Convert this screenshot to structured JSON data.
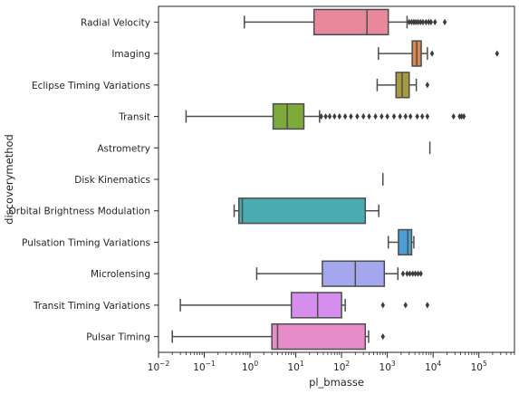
{
  "chart_data": {
    "type": "box",
    "orientation": "horizontal",
    "xscale": "log",
    "xlabel": "pl_bmasse",
    "ylabel": "discoverymethod",
    "xlim": [
      0.01,
      600000
    ],
    "xticks": [
      {
        "value": 0.01,
        "base": "10",
        "exp": "−2"
      },
      {
        "value": 0.1,
        "base": "10",
        "exp": "−1"
      },
      {
        "value": 1,
        "base": "10",
        "exp": "0"
      },
      {
        "value": 10,
        "base": "10",
        "exp": "1"
      },
      {
        "value": 100,
        "base": "10",
        "exp": "2"
      },
      {
        "value": 1000,
        "base": "10",
        "exp": "3"
      },
      {
        "value": 10000,
        "base": "10",
        "exp": "4"
      },
      {
        "value": 100000,
        "base": "10",
        "exp": "5"
      }
    ],
    "grid": false,
    "legend": "none",
    "categories": [
      "Radial Velocity",
      "Imaging",
      "Eclipse Timing Variations",
      "Transit",
      "Astrometry",
      "Disk Kinematics",
      "Orbital Brightness Modulation",
      "Pulsation Timing Variations",
      "Microlensing",
      "Transit Timing Variations",
      "Pulsar Timing"
    ],
    "boxes": [
      {
        "category": "Radial Velocity",
        "color": "#e8889a",
        "whisker_low": 0.75,
        "q1": 25,
        "median": 360,
        "q3": 1050,
        "whisker_high": 2700,
        "outliers": [
          3000,
          3400,
          3800,
          4200,
          4700,
          5300,
          6000,
          7000,
          8000,
          9000,
          11000,
          18000
        ]
      },
      {
        "category": "Imaging",
        "color": "#d9874b",
        "whisker_low": 640,
        "q1": 3500,
        "median": 4400,
        "q3": 5500,
        "whisker_high": 7500,
        "outliers": [
          9500,
          250000
        ]
      },
      {
        "category": "Eclipse Timing Variations",
        "color": "#a69a3e",
        "whisker_low": 600,
        "q1": 1550,
        "median": 2100,
        "q3": 3000,
        "whisker_high": 4300,
        "outliers": [
          7500
        ]
      },
      {
        "category": "Transit",
        "color": "#7daa3a",
        "whisker_low": 0.04,
        "q1": 3.2,
        "median": 6.5,
        "q3": 15,
        "whisker_high": 33,
        "outliers": [
          36,
          45,
          55,
          70,
          90,
          120,
          160,
          220,
          300,
          400,
          550,
          750,
          1000,
          1400,
          1900,
          2500,
          3200,
          4500,
          5800,
          7500,
          28000,
          38000,
          42000,
          47000
        ]
      },
      {
        "category": "Astrometry",
        "color": "#5aa882",
        "whisker_low": 8500,
        "q1": 8500,
        "median": 8500,
        "q3": 8500,
        "whisker_high": 8500,
        "outliers": []
      },
      {
        "category": "Disk Kinematics",
        "color": "#4fa89b",
        "whisker_low": 800,
        "q1": 800,
        "median": 800,
        "q3": 800,
        "whisker_high": 800,
        "outliers": []
      },
      {
        "category": "Orbital Brightness Modulation",
        "color": "#4aabb0",
        "whisker_low": 0.45,
        "q1": 0.57,
        "median": 0.68,
        "q3": 330,
        "whisker_high": 650,
        "outliers": []
      },
      {
        "category": "Pulsation Timing Variations",
        "color": "#4d9ed4",
        "whisker_low": 1050,
        "q1": 1750,
        "median": 2800,
        "q3": 3400,
        "whisker_high": 3800,
        "outliers": []
      },
      {
        "category": "Microlensing",
        "color": "#a4a7ee",
        "whisker_low": 1.4,
        "q1": 38,
        "median": 200,
        "q3": 860,
        "whisker_high": 1700,
        "outliers": [
          2200,
          2700,
          3100,
          3600,
          4100,
          4700,
          5400
        ]
      },
      {
        "category": "Transit Timing Variations",
        "color": "#d68eee",
        "whisker_low": 0.03,
        "q1": 8,
        "median": 30,
        "q3": 100,
        "whisker_high": 120,
        "outliers": [
          800,
          2500,
          7500
        ]
      },
      {
        "category": "Pulsar Timing",
        "color": "#e88cc9",
        "whisker_low": 0.02,
        "q1": 3,
        "median": 4,
        "q3": 330,
        "whisker_high": 390,
        "outliers": [
          800
        ]
      }
    ]
  }
}
